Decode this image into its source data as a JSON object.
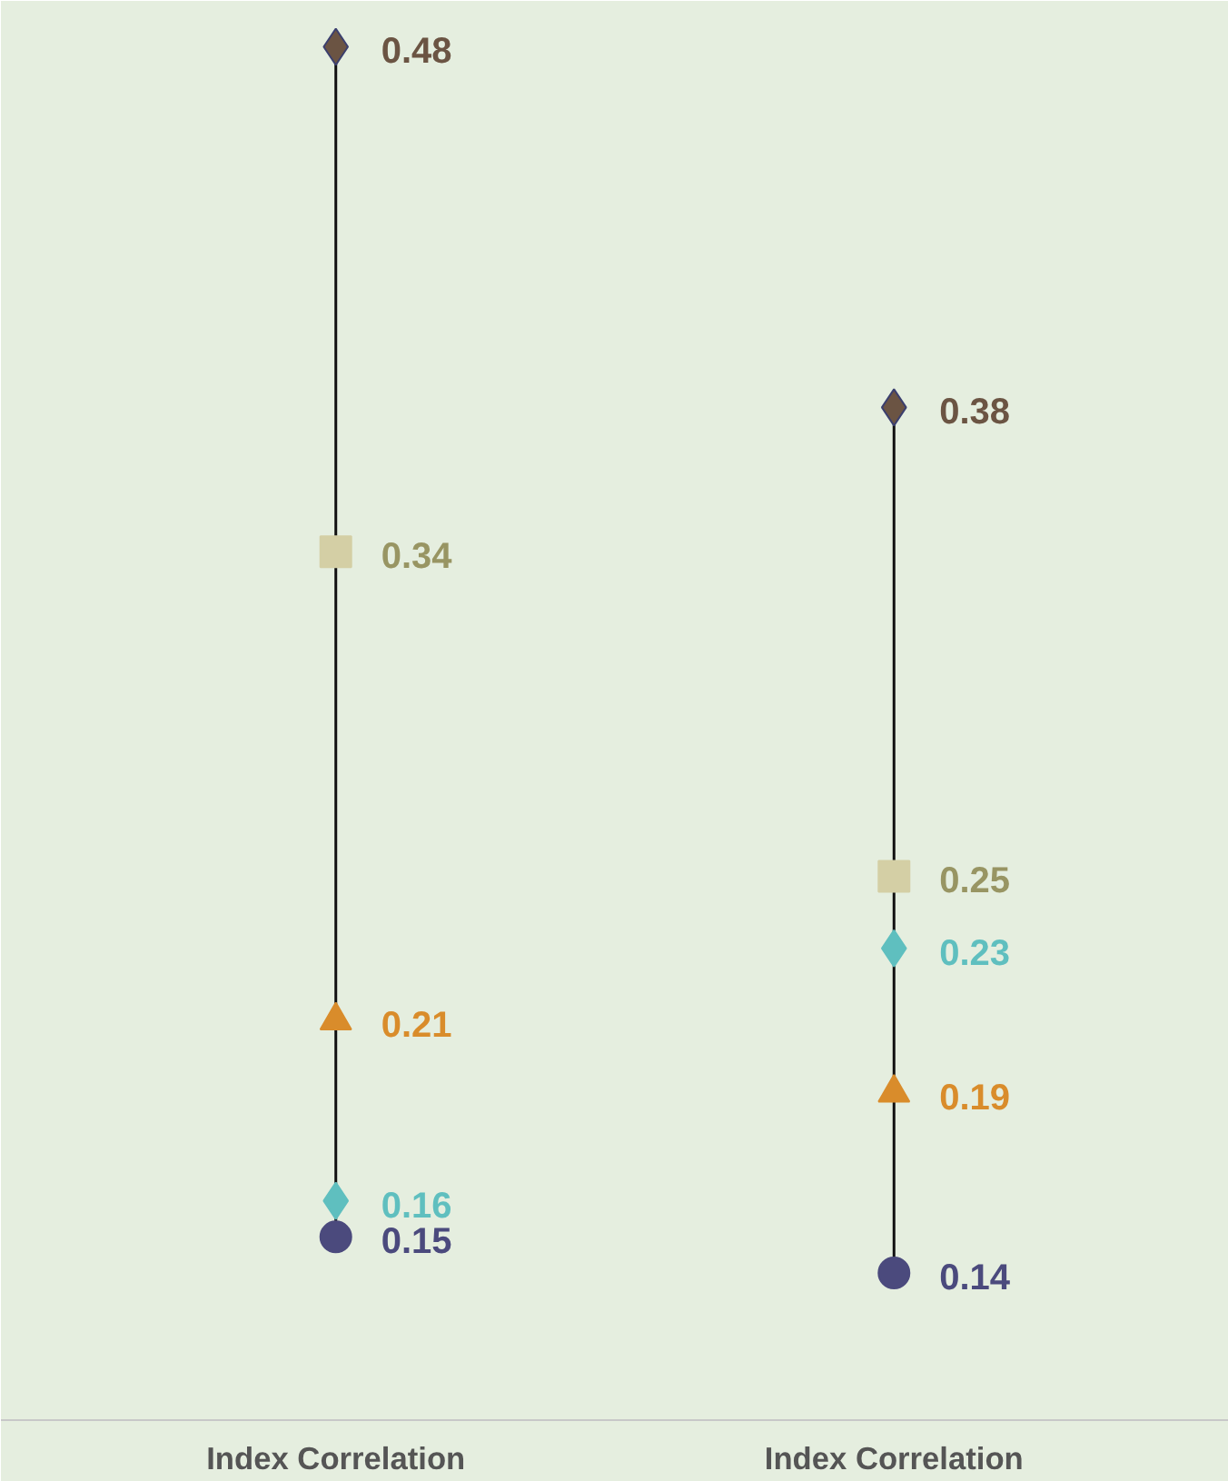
{
  "chart_data": {
    "type": "scatter",
    "categories": [
      "Index Correlation",
      "Index Correlation"
    ],
    "data_labels": true,
    "series": [
      {
        "color": "#6b5443",
        "marker": "diamond",
        "values": [
          0.48,
          0.38
        ]
      },
      {
        "color": "#d4cfa5",
        "marker": "square",
        "values": [
          0.34,
          0.25
        ]
      },
      {
        "color": "#5fbfbf",
        "marker": "diamond",
        "values": [
          0.16,
          0.23
        ]
      },
      {
        "color": "#d98c2b",
        "marker": "triangle",
        "values": [
          0.21,
          0.19
        ]
      },
      {
        "color": "#4b4a7d",
        "marker": "circle",
        "values": [
          0.15,
          0.14
        ]
      }
    ]
  }
}
